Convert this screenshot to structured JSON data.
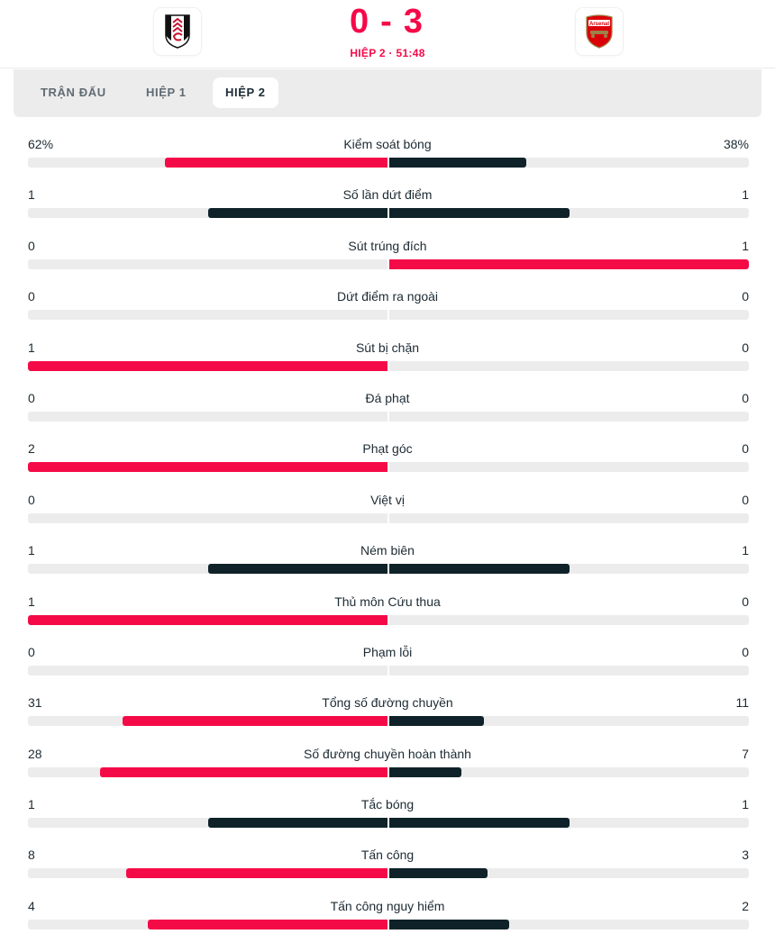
{
  "match": {
    "home_team": {
      "name": "Fulham",
      "logo_icon": "fulham-crest-icon"
    },
    "away_team": {
      "name": "Arsenal",
      "logo_icon": "arsenal-crest-icon"
    },
    "home_score": "0",
    "score_separator": "-",
    "away_score": "3",
    "period_time": "HIỆP 2 · 51:48"
  },
  "colors": {
    "accent": "#f50a48",
    "dark_bar": "#0f2229",
    "track": "#ececec",
    "tab_panel": "#ececec"
  },
  "tabs": [
    {
      "label": "TRẬN ĐẤU",
      "active": false
    },
    {
      "label": "HIỆP 1",
      "active": false
    },
    {
      "label": "HIỆP 2",
      "active": true
    }
  ],
  "stats": [
    {
      "label": "Kiểm soát bóng",
      "home": "62%",
      "away": "38%",
      "home_value": 62,
      "away_value": 38
    },
    {
      "label": "Số lần dứt điểm",
      "home": "1",
      "away": "1",
      "home_value": 1,
      "away_value": 1
    },
    {
      "label": "Sút trúng đích",
      "home": "0",
      "away": "1",
      "home_value": 0,
      "away_value": 1
    },
    {
      "label": "Dứt điểm ra ngoài",
      "home": "0",
      "away": "0",
      "home_value": 0,
      "away_value": 0
    },
    {
      "label": "Sút bị chặn",
      "home": "1",
      "away": "0",
      "home_value": 1,
      "away_value": 0
    },
    {
      "label": "Đá phạt",
      "home": "0",
      "away": "0",
      "home_value": 0,
      "away_value": 0
    },
    {
      "label": "Phạt góc",
      "home": "2",
      "away": "0",
      "home_value": 2,
      "away_value": 0
    },
    {
      "label": "Việt vị",
      "home": "0",
      "away": "0",
      "home_value": 0,
      "away_value": 0
    },
    {
      "label": "Ném biên",
      "home": "1",
      "away": "1",
      "home_value": 1,
      "away_value": 1
    },
    {
      "label": "Thủ môn Cứu thua",
      "home": "1",
      "away": "0",
      "home_value": 1,
      "away_value": 0
    },
    {
      "label": "Phạm lỗi",
      "home": "0",
      "away": "0",
      "home_value": 0,
      "away_value": 0
    },
    {
      "label": "Tổng số đường chuyền",
      "home": "31",
      "away": "11",
      "home_value": 31,
      "away_value": 11
    },
    {
      "label": "Số đường chuyền hoàn thành",
      "home": "28",
      "away": "7",
      "home_value": 28,
      "away_value": 7
    },
    {
      "label": "Tắc bóng",
      "home": "1",
      "away": "1",
      "home_value": 1,
      "away_value": 1
    },
    {
      "label": "Tấn công",
      "home": "8",
      "away": "3",
      "home_value": 8,
      "away_value": 3
    },
    {
      "label": "Tấn công nguy hiểm",
      "home": "4",
      "away": "2",
      "home_value": 4,
      "away_value": 2
    }
  ]
}
